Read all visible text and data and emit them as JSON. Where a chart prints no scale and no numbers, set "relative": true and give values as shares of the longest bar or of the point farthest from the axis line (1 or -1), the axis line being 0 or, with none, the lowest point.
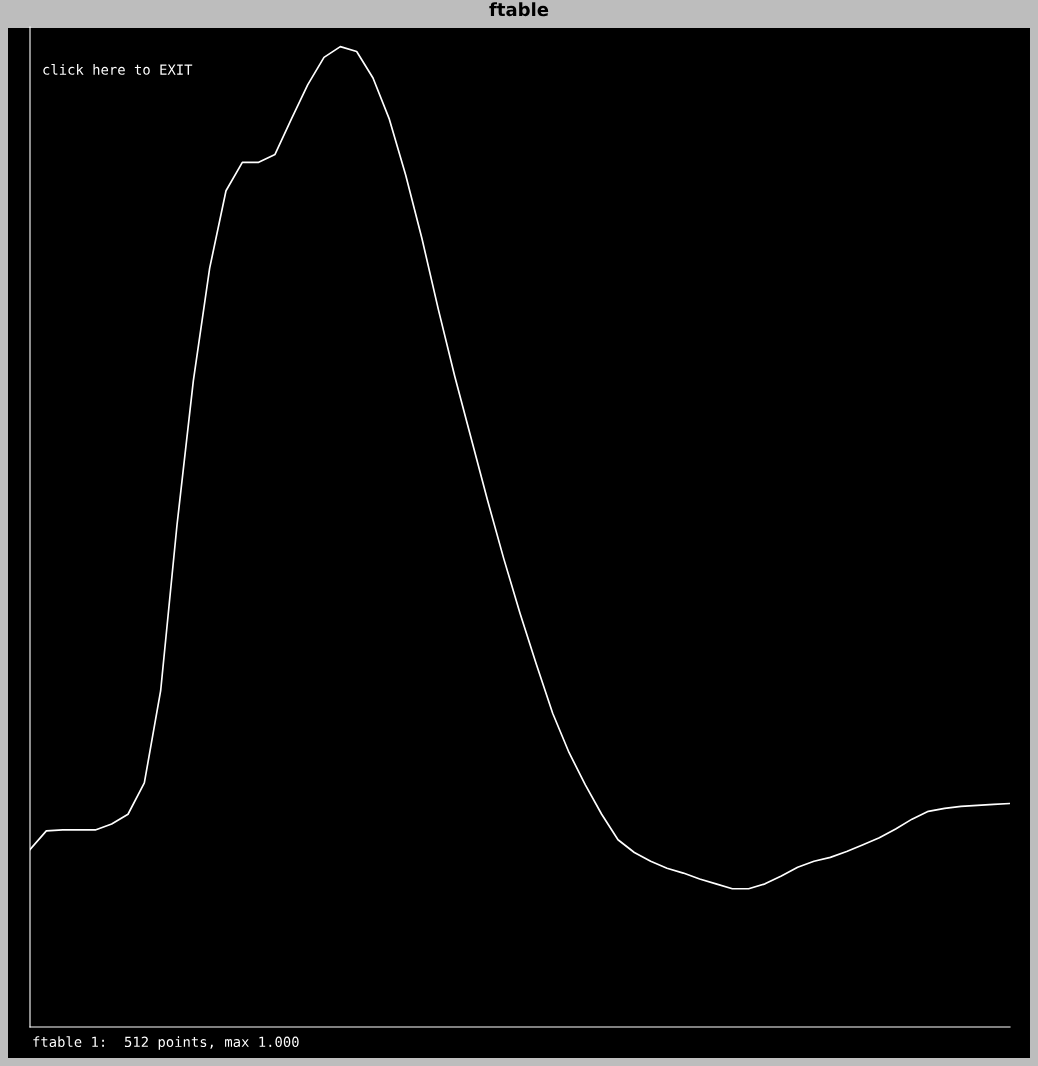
{
  "chart_data": {
    "type": "line",
    "title": "ftable",
    "relative": true,
    "categories": [
      null,
      null,
      null,
      null,
      null,
      null,
      null,
      null,
      null,
      null,
      null,
      null,
      null,
      null,
      null,
      null,
      null,
      null,
      null,
      null,
      null,
      null,
      null,
      null,
      null,
      null,
      null,
      null,
      null,
      null,
      null,
      null,
      null,
      null,
      null,
      null,
      null,
      null,
      null,
      null,
      null,
      null,
      null,
      null,
      null,
      null,
      null,
      null,
      null,
      null,
      null,
      null,
      null,
      null,
      null,
      null,
      null,
      null,
      null,
      null,
      null
    ],
    "series": [
      {
        "color": "#ffffff",
        "values": [
          0.181,
          0.2,
          0.201,
          0.201,
          0.201,
          0.207,
          0.217,
          0.249,
          0.343,
          0.512,
          0.659,
          0.774,
          0.853,
          0.882,
          0.882,
          0.89,
          0.926,
          0.961,
          0.989,
          1,
          0.995,
          0.968,
          0.926,
          0.869,
          0.804,
          0.732,
          0.664,
          0.601,
          0.538,
          0.478,
          0.422,
          0.37,
          0.32,
          0.28,
          0.247,
          0.217,
          0.191,
          0.178,
          0.169,
          0.162,
          0.157,
          0.151,
          0.146,
          0.141,
          0.141,
          0.146,
          0.154,
          0.163,
          0.169,
          0.173,
          0.179,
          0.186,
          0.193,
          0.202,
          0.212,
          0.22,
          0.223,
          0.225,
          0.226,
          0.227,
          0.228
        ]
      }
    ],
    "annotations": [
      "click here to EXIT",
      "ftable 1:  512 points, max 1.000"
    ],
    "grid": false,
    "marker": "none",
    "line_style": "solid"
  }
}
